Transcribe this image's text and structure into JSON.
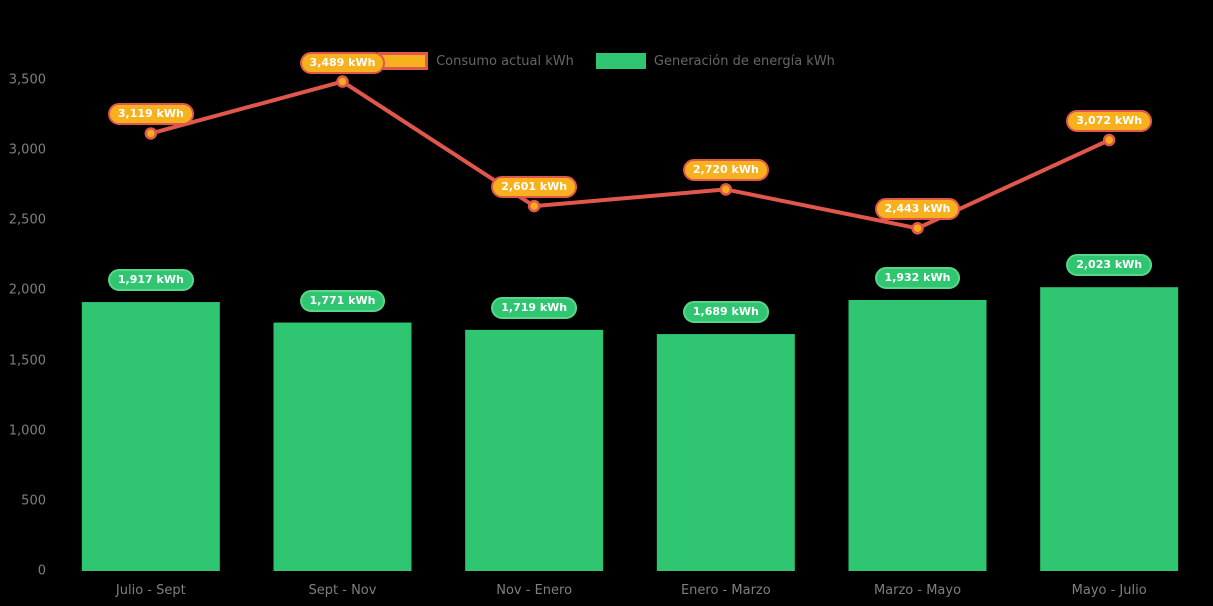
{
  "colors": {
    "background": "#000000",
    "line": "#e2574c",
    "marker_fill": "#f7ac19",
    "bar": "#2fc571",
    "line_pill_bg": "#f8b11e",
    "line_pill_border": "#e2574c",
    "bar_pill_bg": "#2fc571",
    "bar_pill_border": "#57d68c",
    "axis_text": "#7f7f7f",
    "legend_text": "#666666"
  },
  "legend": {
    "items": [
      {
        "label": "Consumo actual kWh"
      },
      {
        "label": "Generación de energía kWh"
      }
    ]
  },
  "chart_data": {
    "type": "combo-bar-line",
    "categories": [
      "Julio - Sept",
      "Sept - Nov",
      "Nov - Enero",
      "Enero - Marzo",
      "Marzo - Mayo",
      "Mayo - Julio"
    ],
    "series": [
      {
        "name": "Consumo actual kWh",
        "type": "line",
        "values": [
          3119,
          3489,
          2601,
          2720,
          2443,
          3072
        ],
        "point_labels": [
          "3,119 kWh",
          "3,489 kWh",
          "2,601 kWh",
          "2,720 kWh",
          "2,443 kWh",
          "3,072 kWh"
        ]
      },
      {
        "name": "Generación de energía kWh",
        "type": "bar",
        "values": [
          1917,
          1771,
          1719,
          1689,
          1932,
          2023
        ],
        "point_labels": [
          "1,917 kWh",
          "1,771 kWh",
          "1,719 kWh",
          "1,689 kWh",
          "1,932 kWh",
          "2,023 kWh"
        ]
      }
    ],
    "xlabel": "",
    "ylabel": "",
    "ylim": [
      0,
      3500
    ],
    "ytick_interval": 500,
    "ytick_labels": [
      "0",
      "500",
      "1,000",
      "1,500",
      "2,000",
      "2,500",
      "3,000",
      "3,500"
    ],
    "grid": false,
    "legend_position": "top-center"
  }
}
